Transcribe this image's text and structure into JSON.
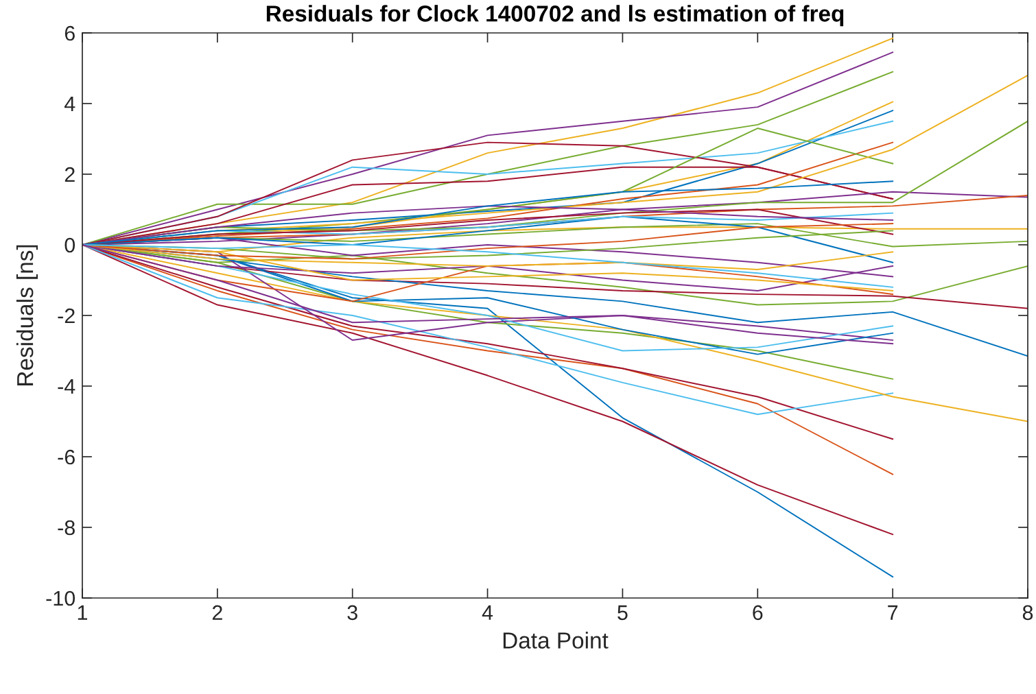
{
  "chart_data": {
    "type": "line",
    "title": "Residuals for Clock 1400702 and ls estimation of freq",
    "xlabel": "Data Point",
    "ylabel": "Residuals [ns]",
    "x": [
      1,
      2,
      3,
      4,
      5,
      6,
      7
    ],
    "xlim": [
      1,
      8
    ],
    "xticks": [
      1,
      2,
      3,
      4,
      5,
      6,
      7,
      8
    ],
    "ylim": [
      -10,
      6
    ],
    "yticks": [
      -10,
      -8,
      -6,
      -4,
      -2,
      0,
      2,
      4,
      6
    ],
    "grid": false,
    "legend": false,
    "marker": "none",
    "line_style": "solid",
    "series": [
      {
        "color": "#0072bd",
        "values": [
          0,
          -0.3,
          -1.5,
          -1.8,
          -4.9,
          -7.0,
          -9.4
        ]
      },
      {
        "color": "#a2142f",
        "values": [
          0,
          -1.7,
          -2.5,
          -3.7,
          -5.0,
          -6.8,
          -8.2
        ]
      },
      {
        "color": "#d95319",
        "values": [
          0,
          -1.3,
          -2.4,
          -3.0,
          -3.5,
          -4.5,
          -6.5
        ]
      },
      {
        "color": "#a2142f",
        "values": [
          0,
          -1.2,
          -2.3,
          -2.8,
          -3.5,
          -4.3,
          -5.5
        ]
      },
      {
        "color": "#4dbeee",
        "values": [
          0,
          -1.5,
          -2.0,
          -2.9,
          -3.9,
          -4.8,
          -4.2
        ]
      },
      {
        "color": "#77ac30",
        "values": [
          0,
          -0.5,
          -1.6,
          -2.2,
          -2.5,
          -3.0,
          -3.8
        ]
      },
      {
        "color": "#edb120",
        "values": [
          0,
          0.6,
          1.2,
          2.6,
          3.3,
          4.3,
          5.85
        ]
      },
      {
        "color": "#7e2f8e",
        "values": [
          0,
          1.0,
          2.0,
          3.1,
          3.5,
          3.9,
          5.45
        ]
      },
      {
        "color": "#77ac30",
        "values": [
          0,
          1.15,
          1.15,
          2.0,
          2.8,
          3.4,
          4.9
        ]
      },
      {
        "color": "#edb120",
        "values": [
          0,
          0.3,
          0.5,
          1.0,
          1.5,
          2.3,
          4.05
        ]
      },
      {
        "color": "#0072bd",
        "values": [
          0,
          0.5,
          0.7,
          0.95,
          1.2,
          2.3,
          3.8
        ]
      },
      {
        "color": "#4dbeee",
        "values": [
          0,
          0.8,
          2.2,
          2.0,
          2.3,
          2.6,
          3.5
        ]
      },
      {
        "color": "#a2142f",
        "values": [
          0,
          0.8,
          2.4,
          2.9,
          2.8,
          2.2,
          1.3
        ]
      },
      {
        "color": "#a2142f",
        "values": [
          0,
          0.6,
          1.7,
          1.8,
          2.2,
          2.2,
          1.3
        ]
      },
      {
        "color": "#d95319",
        "values": [
          0,
          0.25,
          0.45,
          0.75,
          1.3,
          1.7,
          2.9
        ]
      },
      {
        "color": "#77ac30",
        "values": [
          0,
          0.3,
          0.6,
          1.0,
          1.5,
          3.3,
          2.3
        ]
      },
      {
        "color": "#7e2f8e",
        "x": [
          1,
          2,
          3,
          4,
          5,
          6,
          7,
          8
        ],
        "values": [
          0,
          0.1,
          0.3,
          0.6,
          1.0,
          1.2,
          1.5,
          1.35
        ]
      },
      {
        "color": "#d95319",
        "x": [
          1,
          2,
          3,
          4,
          5,
          6,
          7,
          8
        ],
        "values": [
          0,
          0.2,
          0.3,
          0.5,
          0.8,
          1.0,
          1.1,
          1.4
        ]
      },
      {
        "color": "#edb120",
        "x": [
          1,
          2,
          3,
          4,
          5,
          6,
          7,
          8
        ],
        "values": [
          0,
          -0.2,
          0.2,
          0.4,
          0.5,
          0.5,
          0.45,
          0.45
        ]
      },
      {
        "color": "#77ac30",
        "x": [
          1,
          2,
          3,
          4,
          5,
          6,
          7,
          8
        ],
        "values": [
          0,
          0.2,
          0.1,
          0.3,
          0.5,
          0.6,
          -0.05,
          0.1
        ]
      },
      {
        "color": "#77ac30",
        "x": [
          1,
          2,
          3,
          4,
          5,
          6,
          7,
          8
        ],
        "values": [
          0,
          -0.5,
          -0.3,
          -0.8,
          -1.2,
          -1.7,
          -1.6,
          -0.6
        ]
      },
      {
        "color": "#a2142f",
        "x": [
          1,
          2,
          3,
          4,
          5,
          6,
          7,
          8
        ],
        "values": [
          0,
          -0.6,
          -1.0,
          -1.1,
          -1.3,
          -1.4,
          -1.45,
          -1.8
        ]
      },
      {
        "color": "#0072bd",
        "x": [
          1,
          2,
          3,
          4,
          5,
          6,
          7,
          8
        ],
        "values": [
          0,
          -0.4,
          -0.9,
          -1.3,
          -1.6,
          -2.2,
          -1.9,
          -3.15
        ]
      },
      {
        "color": "#edb120",
        "x": [
          1,
          2,
          3,
          4,
          5,
          6,
          7,
          8
        ],
        "values": [
          0,
          -0.8,
          -1.6,
          -2.0,
          -2.4,
          -3.3,
          -4.3,
          -5.0
        ]
      },
      {
        "color": "#edb120",
        "x": [
          1,
          2,
          3,
          4,
          5,
          6,
          7,
          8
        ],
        "values": [
          0,
          0.4,
          0.6,
          0.9,
          1.2,
          1.5,
          2.7,
          4.8
        ]
      },
      {
        "color": "#77ac30",
        "x": [
          1,
          2,
          3,
          4,
          5,
          6,
          7,
          8
        ],
        "values": [
          0,
          0.5,
          0.4,
          0.5,
          0.9,
          1.2,
          1.2,
          3.5
        ]
      },
      {
        "color": "#7e2f8e",
        "values": [
          0,
          -0.2,
          -2.7,
          -2.2,
          -2.0,
          -2.3,
          -2.7
        ]
      },
      {
        "color": "#0072bd",
        "values": [
          0,
          -0.3,
          -1.6,
          -1.5,
          -2.4,
          -3.1,
          -2.5
        ]
      },
      {
        "color": "#4dbeee",
        "values": [
          0,
          -0.6,
          -1.4,
          -2.0,
          -3.0,
          -2.9,
          -2.3
        ]
      },
      {
        "color": "#7e2f8e",
        "values": [
          0,
          -0.6,
          -0.8,
          -0.6,
          -1.0,
          -1.3,
          -0.6
        ]
      },
      {
        "color": "#7e2f8e",
        "values": [
          0,
          0.2,
          -0.3,
          0.0,
          -0.2,
          -0.5,
          -0.9
        ]
      },
      {
        "color": "#d95319",
        "values": [
          0,
          -1.0,
          -1.6,
          -0.6,
          -0.5,
          -0.9,
          -1.4
        ]
      },
      {
        "color": "#edb120",
        "values": [
          0,
          -0.2,
          -1.0,
          -0.9,
          -0.8,
          -1.0,
          -1.3
        ]
      },
      {
        "color": "#0072bd",
        "values": [
          0,
          0.2,
          0.0,
          0.4,
          0.8,
          0.5,
          -0.5
        ]
      },
      {
        "color": "#4dbeee",
        "values": [
          0,
          0.4,
          0.3,
          0.5,
          0.8,
          0.7,
          0.9
        ]
      },
      {
        "color": "#a2142f",
        "values": [
          0,
          0.3,
          0.4,
          0.7,
          0.9,
          1.0,
          0.3
        ]
      },
      {
        "color": "#7e2f8e",
        "values": [
          0,
          0.5,
          0.9,
          1.1,
          1.0,
          0.8,
          0.7
        ]
      },
      {
        "color": "#edb120",
        "values": [
          0,
          -0.4,
          -0.5,
          -0.6,
          -0.5,
          -0.7,
          -0.2
        ]
      },
      {
        "color": "#77ac30",
        "values": [
          0,
          -0.1,
          -0.4,
          -0.3,
          -0.1,
          0.2,
          0.4
        ]
      },
      {
        "color": "#0072bd",
        "values": [
          0,
          0.4,
          0.5,
          1.1,
          1.5,
          1.6,
          1.8
        ]
      },
      {
        "color": "#d95319",
        "values": [
          0,
          -0.3,
          -0.4,
          -0.1,
          0.1,
          0.5,
          0.6
        ]
      },
      {
        "color": "#4dbeee",
        "values": [
          0,
          -0.1,
          0.0,
          -0.2,
          -0.5,
          -0.8,
          -1.2
        ]
      },
      {
        "color": "#7e2f8e",
        "values": [
          0,
          -1.0,
          -2.2,
          -2.1,
          -2.0,
          -2.5,
          -2.8
        ]
      }
    ]
  }
}
